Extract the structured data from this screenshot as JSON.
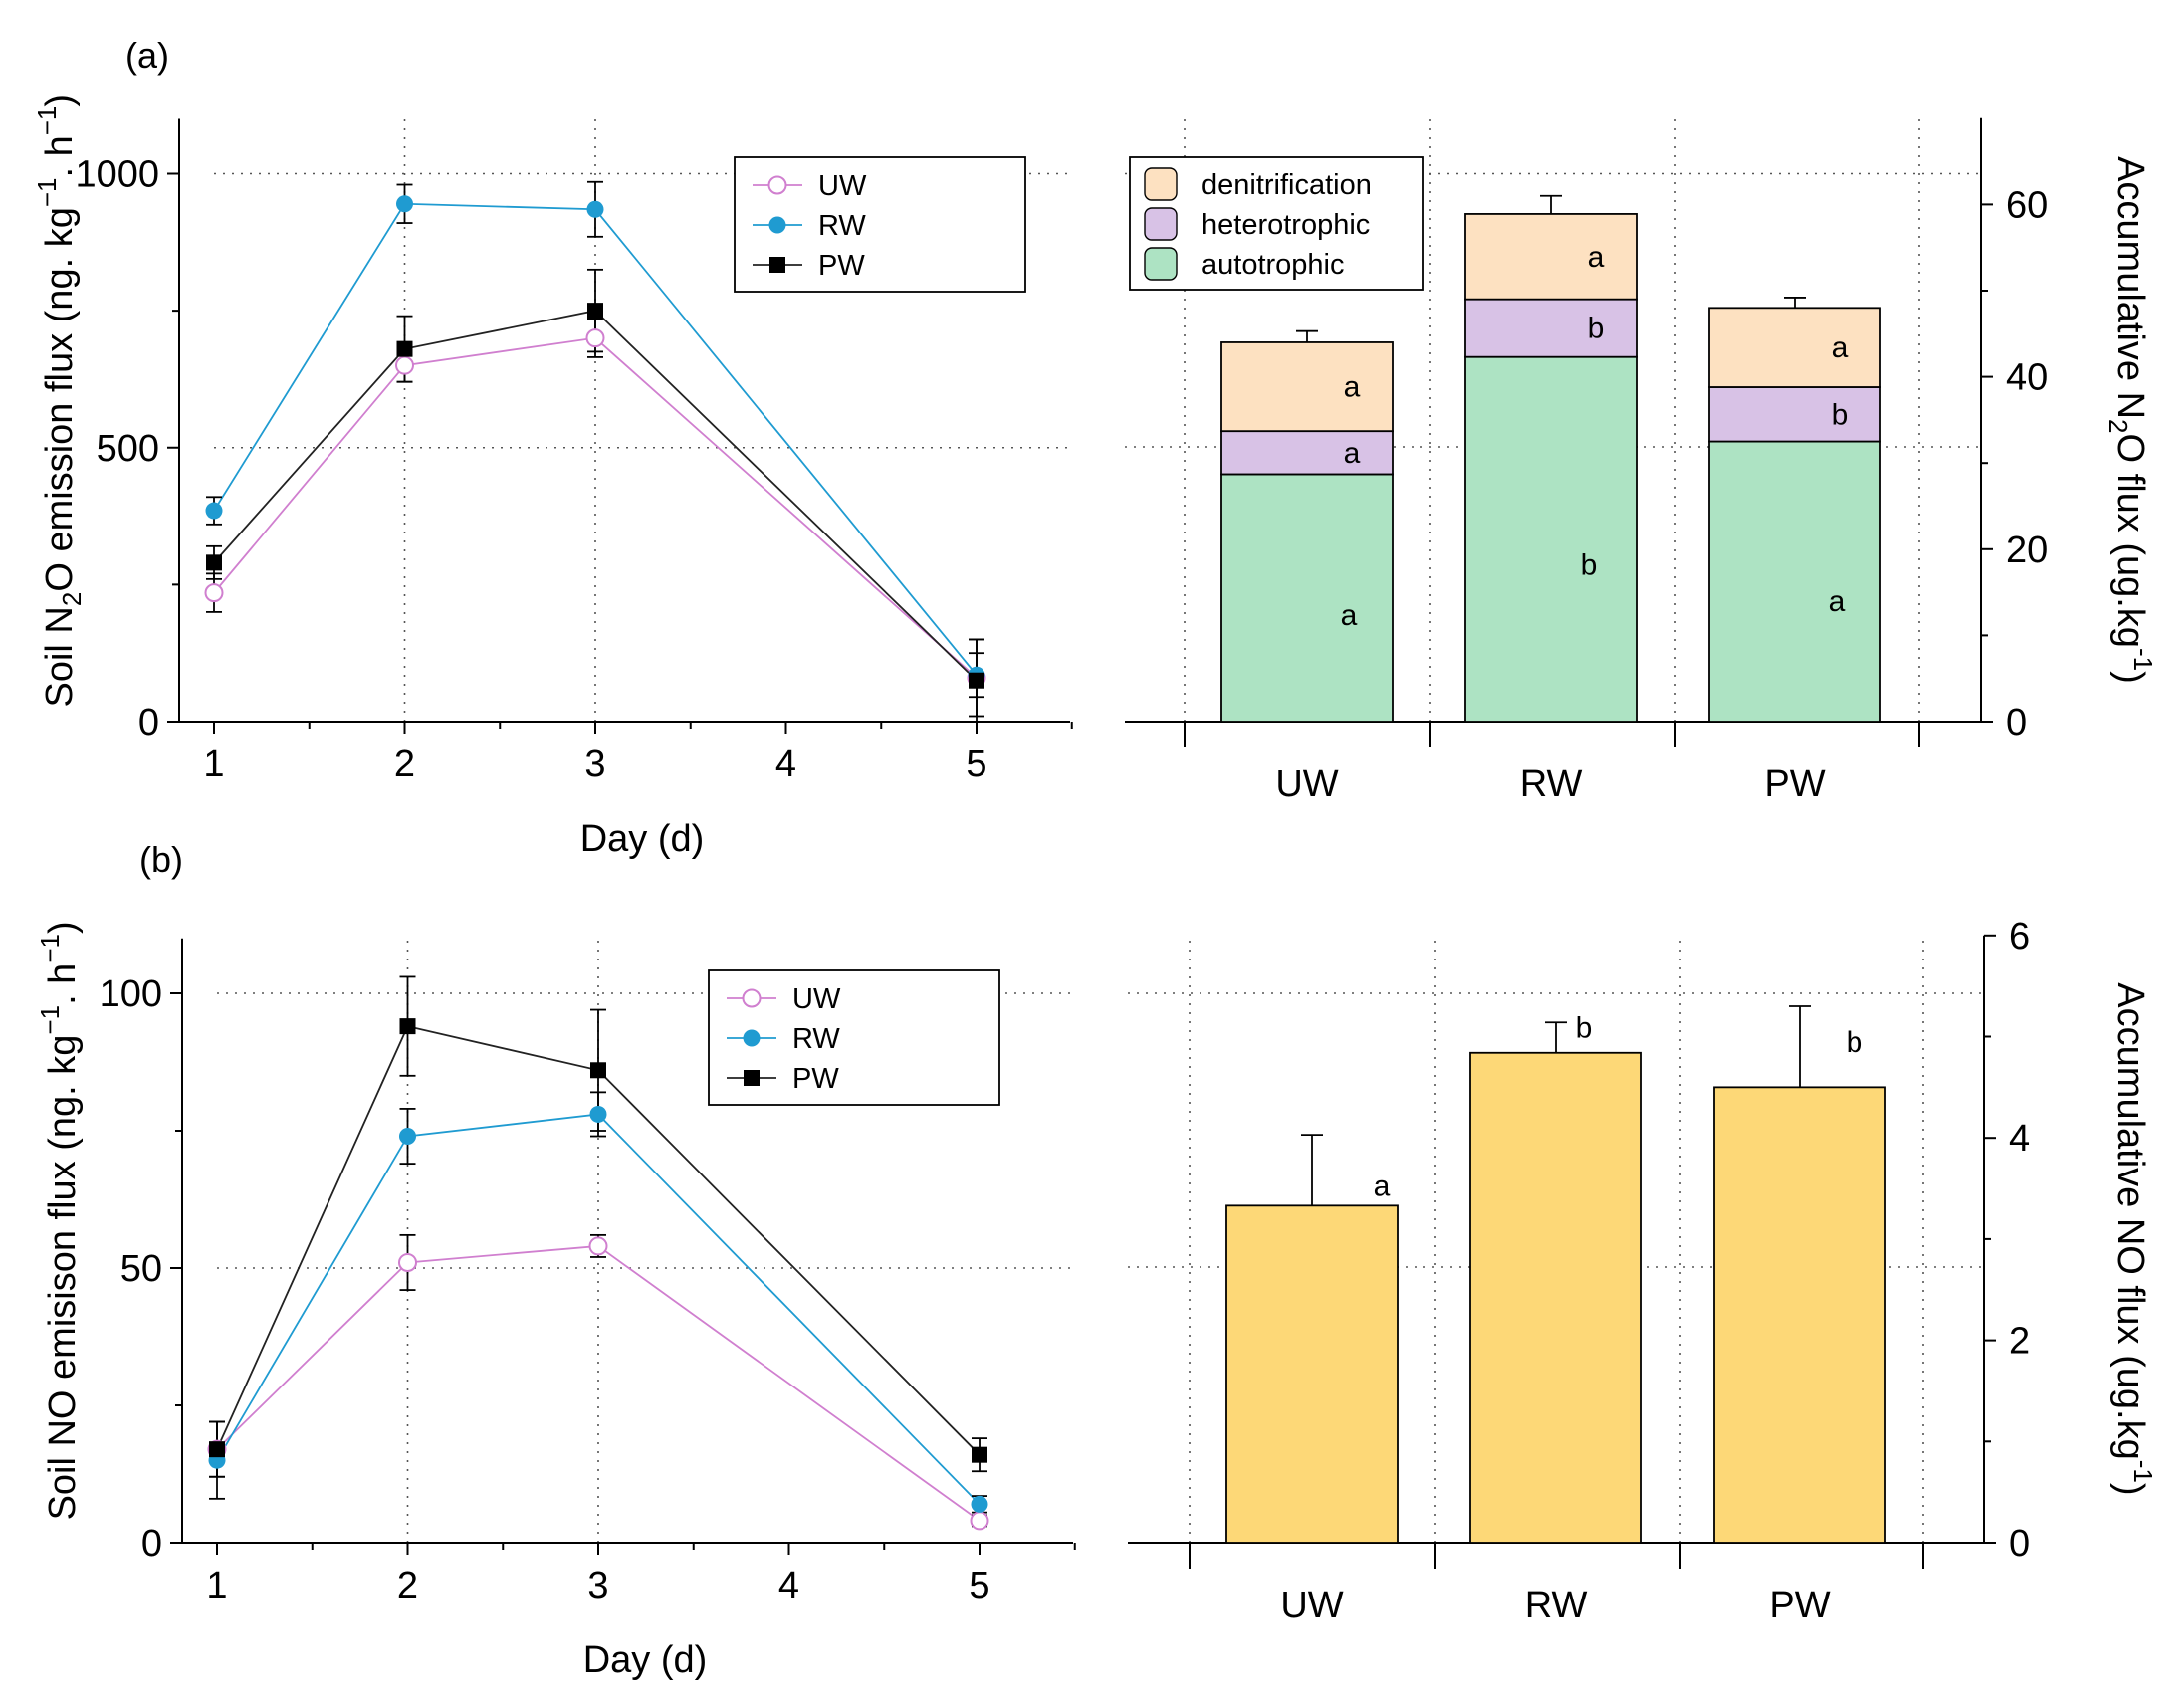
{
  "panel_labels": [
    "(a)",
    "(b)"
  ],
  "colors": {
    "UW": "#d07fcf",
    "RW": "#1f9bd1",
    "PW": "#000000",
    "denitrification": "#fde1c1",
    "heterotrophic": "#d8c2e6",
    "autotrophic": "#ade3c3",
    "no_bar": "#fdd877"
  },
  "chart_data": [
    {
      "id": "n2o-line",
      "type": "line",
      "panel": "(a)",
      "xlabel": "Day (d)",
      "ylabel": "Soil N2O emission flux (ng. kg−1. h−1)",
      "ylabel_parts": {
        "pre": "Soil N",
        "sub": "2",
        "mid": "O emission flux (ng. kg",
        "sup1": "−1",
        "mid2": ". h",
        "sup2": "−1",
        "post": ")"
      },
      "xlim": [
        1,
        5.5
      ],
      "ylim": [
        0,
        1100
      ],
      "xticks": [
        1,
        2,
        3,
        4,
        5
      ],
      "yticks": [
        0,
        500,
        1000
      ],
      "legend_position": "top-center",
      "grid": true,
      "x": [
        1,
        2,
        3,
        5
      ],
      "series": [
        {
          "name": "UW",
          "marker": "open-circle",
          "values": [
            235,
            650,
            700,
            80
          ],
          "errors": [
            35,
            30,
            35,
            70
          ]
        },
        {
          "name": "RW",
          "marker": "filled-circle",
          "values": [
            385,
            945,
            935,
            85
          ],
          "errors": [
            25,
            35,
            50,
            40
          ]
        },
        {
          "name": "PW",
          "marker": "filled-square",
          "values": [
            290,
            680,
            750,
            75
          ],
          "errors": [
            30,
            60,
            75,
            75
          ]
        }
      ]
    },
    {
      "id": "n2o-bar",
      "type": "bar",
      "stacked": true,
      "panel": "(a)",
      "categories": [
        "UW",
        "RW",
        "PW"
      ],
      "ylabel": "Accumulative N2O flux (ug.kg-1)",
      "ylabel_parts": {
        "pre": "Accumulative N",
        "sub": "2",
        "mid": "O flux (ug.kg",
        "sup": "-1",
        "post": ")"
      },
      "ylim": [
        0,
        70
      ],
      "yticks": [
        0,
        20,
        40,
        60
      ],
      "legend_position": "top-left",
      "grid": true,
      "series": [
        {
          "name": "autotrophic",
          "values": [
            28.7,
            42.3,
            32.5
          ],
          "errors": [
            1.2,
            2.2,
            2.3
          ],
          "letters": [
            "a",
            "b",
            "a"
          ]
        },
        {
          "name": "heterotrophic",
          "values": [
            5.0,
            6.7,
            6.3
          ],
          "errors": [
            1.5,
            1.0,
            1.2
          ],
          "letters": [
            "a",
            "b",
            "b"
          ]
        },
        {
          "name": "denitrification",
          "values": [
            10.3,
            9.9,
            9.2
          ],
          "errors": [
            1.3,
            2.1,
            1.2
          ],
          "letters": [
            "a",
            "a",
            "a"
          ]
        }
      ]
    },
    {
      "id": "no-line",
      "type": "line",
      "panel": "(b)",
      "xlabel": "Day (d)",
      "ylabel": "Soil NO emisison flux (ng. kg−1. h−1)",
      "ylabel_parts": {
        "pre": "Soil NO emisison flux (ng. kg",
        "sup1": "−1",
        "mid2": ". h",
        "sup2": "−1",
        "post": ")"
      },
      "xlim": [
        1,
        5.5
      ],
      "ylim": [
        0,
        110
      ],
      "xticks": [
        1,
        2,
        3,
        4,
        5
      ],
      "yticks": [
        0,
        50,
        100
      ],
      "legend_position": "top-center",
      "grid": true,
      "x": [
        1,
        2,
        3,
        5
      ],
      "series": [
        {
          "name": "UW",
          "marker": "open-circle",
          "values": [
            17,
            51,
            54,
            4
          ],
          "errors": [
            5,
            5,
            2,
            1
          ]
        },
        {
          "name": "RW",
          "marker": "filled-circle",
          "values": [
            15,
            74,
            78,
            7
          ],
          "errors": [
            7,
            5,
            4,
            1.5
          ]
        },
        {
          "name": "PW",
          "marker": "filled-square",
          "values": [
            17,
            94,
            86,
            16
          ],
          "errors": [
            5,
            9,
            11,
            3
          ]
        }
      ]
    },
    {
      "id": "no-bar",
      "type": "bar",
      "panel": "(b)",
      "categories": [
        "UW",
        "RW",
        "PW"
      ],
      "ylabel": "Accumulative NO flux (ug.kg-1)",
      "ylabel_parts": {
        "pre": "Accumulative NO flux (ug.kg",
        "sup": "-1",
        "post": ")"
      },
      "ylim": [
        0,
        6
      ],
      "yticks": [
        0,
        2,
        4,
        6
      ],
      "grid": true,
      "values": [
        3.33,
        4.84,
        4.5
      ],
      "errors": [
        0.7,
        0.3,
        0.8
      ],
      "letters": [
        "a",
        "b",
        "b"
      ]
    }
  ]
}
